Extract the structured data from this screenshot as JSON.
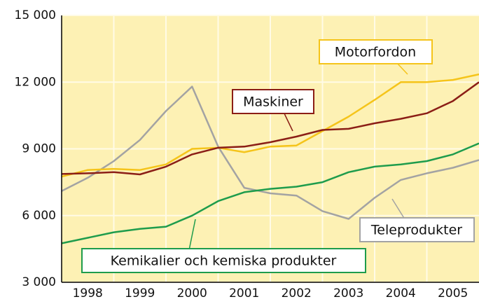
{
  "chart_data": {
    "type": "line",
    "x": [
      1998,
      1998.5,
      1999,
      1999.5,
      2000,
      2000.5,
      2001,
      2001.5,
      2002,
      2002.5,
      2003,
      2003.5,
      2004,
      2004.5,
      2005,
      2005.5,
      2006
    ],
    "xlim": [
      1998,
      2006
    ],
    "xticks": [
      {
        "value": 1998.5,
        "label": "1998"
      },
      {
        "value": 1999.5,
        "label": "1999"
      },
      {
        "value": 2000.5,
        "label": "2000"
      },
      {
        "value": 2001.5,
        "label": "2001"
      },
      {
        "value": 2002.5,
        "label": "2002"
      },
      {
        "value": 2003.5,
        "label": "2003"
      },
      {
        "value": 2004.5,
        "label": "2004"
      },
      {
        "value": 2005.5,
        "label": "2005"
      }
    ],
    "xgrid": [
      1999,
      2000,
      2001,
      2002,
      2003,
      2004,
      2005
    ],
    "ylim": [
      3000,
      15000
    ],
    "yticks": [
      {
        "value": 3000,
        "label": "3 000"
      },
      {
        "value": 6000,
        "label": "6 000"
      },
      {
        "value": 9000,
        "label": "9 000"
      },
      {
        "value": 12000,
        "label": "12 000"
      },
      {
        "value": 15000,
        "label": "15 000"
      }
    ],
    "grid": true,
    "series": [
      {
        "name": "Teleprodukter",
        "color": "#a3a3a3",
        "values": [
          7100,
          7700,
          8450,
          9400,
          10700,
          11800,
          9100,
          7250,
          7000,
          6900,
          6200,
          5850,
          6800,
          7600,
          7900,
          8150,
          8500
        ]
      },
      {
        "name": "Motorfordon",
        "color": "#f5c41a",
        "values": [
          7750,
          8050,
          8100,
          8050,
          8300,
          9000,
          9050,
          8850,
          9100,
          9150,
          9800,
          10450,
          11200,
          12000,
          12000,
          12100,
          12350
        ]
      },
      {
        "name": "Maskiner",
        "color": "#8b1e16",
        "values": [
          7870,
          7900,
          7950,
          7850,
          8200,
          8750,
          9050,
          9100,
          9300,
          9550,
          9850,
          9900,
          10150,
          10350,
          10600,
          11150,
          12000
        ]
      },
      {
        "name": "Kemikalier och kemiska produkter",
        "color": "#1e9c4c",
        "values": [
          4750,
          5000,
          5250,
          5400,
          5500,
          6000,
          6650,
          7050,
          7200,
          7300,
          7500,
          7950,
          8200,
          8300,
          8450,
          8750,
          9250
        ]
      }
    ]
  }
}
